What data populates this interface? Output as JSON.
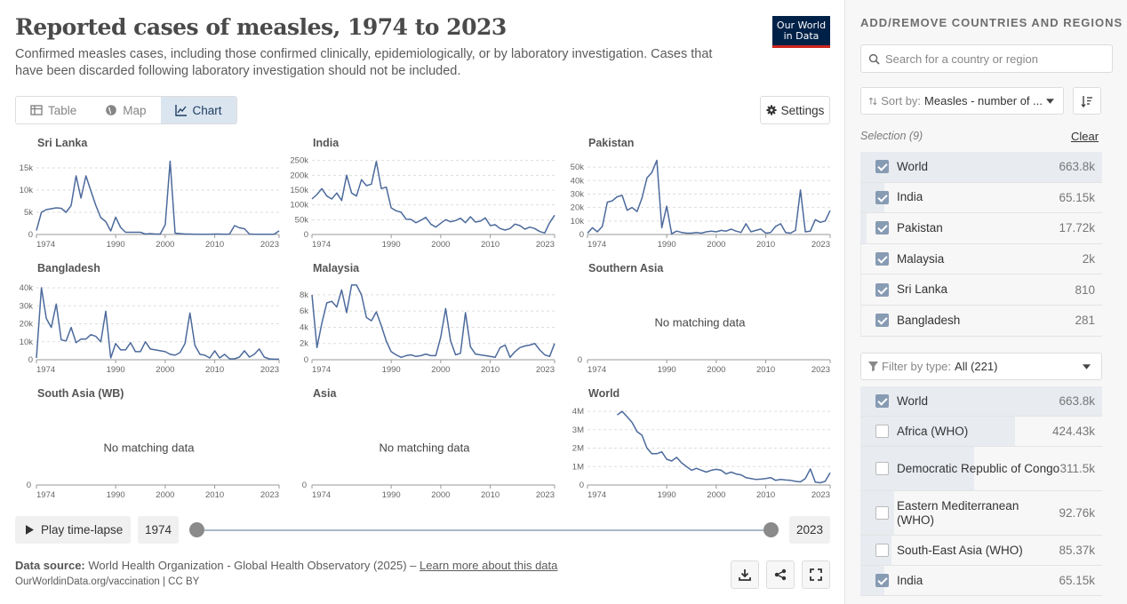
{
  "header": {
    "title": "Reported cases of measles, 1974 to 2023",
    "subtitle": "Confirmed measles cases, including those confirmed clinically, epidemiologically, or by laboratory investigation. Cases that have been discarded following laboratory investigation should not be included.",
    "logo_line1": "Our World",
    "logo_line2": "in Data"
  },
  "tabs": [
    {
      "label": "Table"
    },
    {
      "label": "Map"
    },
    {
      "label": "Chart"
    }
  ],
  "settings_label": "Settings",
  "controls": {
    "play_label": "Play time-lapse",
    "start_year": "1974",
    "end_year": "2023"
  },
  "footer": {
    "source_label": "Data source:",
    "source_text": "World Health Organization - Global Health Observatory (2025) –",
    "learn_more": "Learn more about this data",
    "url": "OurWorldinData.org/vaccination | CC BY"
  },
  "sidebar": {
    "heading": "ADD/REMOVE COUNTRIES AND REGIONS",
    "search_placeholder": "Search for a country or region",
    "sort_label": "Sort by:",
    "sort_value": "Measles - number of ...",
    "selection_label": "Selection (9)",
    "clear_label": "Clear",
    "selected": [
      {
        "name": "World",
        "value": "663.8k",
        "checked": true,
        "share": 1.0
      },
      {
        "name": "India",
        "value": "65.15k",
        "checked": true,
        "share": 0.098
      },
      {
        "name": "Pakistan",
        "value": "17.72k",
        "checked": true,
        "share": 0.027
      },
      {
        "name": "Malaysia",
        "value": "2k",
        "checked": true,
        "share": 0.003
      },
      {
        "name": "Sri Lanka",
        "value": "810",
        "checked": true,
        "share": 0.001
      },
      {
        "name": "Bangladesh",
        "value": "281",
        "checked": true,
        "share": 0.0004
      }
    ],
    "filter_label": "Filter by type:",
    "filter_value": "All (221)",
    "all_items": [
      {
        "name": "World",
        "value": "663.8k",
        "checked": true,
        "share": 1.0
      },
      {
        "name": "Africa (WHO)",
        "value": "424.43k",
        "checked": false,
        "share": 0.64
      },
      {
        "name": "Democratic Republic of Congo",
        "value": "311.5k",
        "checked": false,
        "share": 0.47
      },
      {
        "name": "Eastern Mediterranean (WHO)",
        "value": "92.76k",
        "checked": false,
        "share": 0.14
      },
      {
        "name": "South-East Asia (WHO)",
        "value": "85.37k",
        "checked": false,
        "share": 0.13
      },
      {
        "name": "India",
        "value": "65.15k",
        "checked": true,
        "share": 0.098
      }
    ]
  },
  "chart_data": {
    "type": "line",
    "x_ticks": [
      1974,
      1990,
      2000,
      2010,
      2023
    ],
    "no_data_text": "No matching data",
    "color": "#4c6a9c",
    "panels": [
      {
        "name": "Sri Lanka",
        "yticks": [
          0,
          5000,
          10000,
          15000
        ],
        "yticklabels": [
          "0",
          "5k",
          "10k",
          "15k"
        ],
        "ymax": 17000,
        "x": [
          1974,
          1975,
          1976,
          1977,
          1978,
          1979,
          1980,
          1981,
          1982,
          1983,
          1984,
          1985,
          1986,
          1987,
          1988,
          1989,
          1990,
          1991,
          1992,
          1993,
          1994,
          1995,
          1996,
          1997,
          1998,
          1999,
          2000,
          2001,
          2002,
          2003,
          2004,
          2005,
          2006,
          2007,
          2008,
          2009,
          2010,
          2011,
          2012,
          2013,
          2014,
          2015,
          2016,
          2017,
          2018,
          2019,
          2020,
          2021,
          2022,
          2023
        ],
        "values": [
          900,
          5000,
          5600,
          5800,
          6000,
          5900,
          5000,
          6500,
          13200,
          8200,
          13200,
          9800,
          6500,
          3800,
          2900,
          800,
          3900,
          1600,
          500,
          500,
          500,
          500,
          100,
          200,
          100,
          100,
          2200,
          16500,
          300,
          200,
          100,
          100,
          50,
          50,
          50,
          50,
          100,
          100,
          50,
          100,
          2000,
          1500,
          1300,
          100,
          50,
          50,
          50,
          50,
          50,
          810
        ]
      },
      {
        "name": "India",
        "yticks": [
          0,
          50000,
          100000,
          150000,
          200000,
          250000
        ],
        "yticklabels": [
          "0",
          "50k",
          "100k",
          "150k",
          "200k",
          "250k"
        ],
        "ymax": 255000,
        "x": [
          1974,
          1975,
          1976,
          1977,
          1978,
          1979,
          1980,
          1981,
          1982,
          1983,
          1984,
          1985,
          1986,
          1987,
          1988,
          1989,
          1990,
          1991,
          1992,
          1993,
          1994,
          1995,
          1996,
          1997,
          1998,
          1999,
          2000,
          2001,
          2002,
          2003,
          2004,
          2005,
          2006,
          2007,
          2008,
          2009,
          2010,
          2011,
          2012,
          2013,
          2014,
          2015,
          2016,
          2017,
          2018,
          2019,
          2020,
          2021,
          2022,
          2023
        ],
        "values": [
          120000,
          135000,
          155000,
          130000,
          120000,
          140000,
          115000,
          200000,
          140000,
          130000,
          185000,
          165000,
          170000,
          247000,
          155000,
          160000,
          90000,
          80000,
          75000,
          52000,
          51000,
          40000,
          48000,
          58000,
          35000,
          25000,
          38000,
          50000,
          43000,
          47000,
          55000,
          40000,
          60000,
          42000,
          45000,
          56000,
          30000,
          33000,
          20000,
          15000,
          20000,
          35000,
          30000,
          18000,
          25000,
          20000,
          10000,
          5000,
          40000,
          65150
        ]
      },
      {
        "name": "Pakistan",
        "yticks": [
          0,
          10000,
          20000,
          30000,
          40000,
          50000
        ],
        "yticklabels": [
          "0",
          "10k",
          "20k",
          "30k",
          "40k",
          "50k"
        ],
        "ymax": 56000,
        "x": [
          1974,
          1975,
          1976,
          1977,
          1978,
          1979,
          1980,
          1981,
          1982,
          1983,
          1984,
          1985,
          1986,
          1987,
          1988,
          1989,
          1990,
          1991,
          1992,
          1993,
          1994,
          1995,
          1996,
          1997,
          1998,
          1999,
          2000,
          2001,
          2002,
          2003,
          2004,
          2005,
          2006,
          2007,
          2008,
          2009,
          2010,
          2011,
          2012,
          2013,
          2014,
          2015,
          2016,
          2017,
          2018,
          2019,
          2020,
          2021,
          2022,
          2023
        ],
        "values": [
          1000,
          5000,
          2000,
          6000,
          24000,
          25000,
          28000,
          29000,
          18000,
          20000,
          17000,
          27000,
          42000,
          46000,
          55000,
          5000,
          21000,
          500,
          2500,
          1500,
          1000,
          1000,
          1500,
          1000,
          2000,
          2500,
          2000,
          3000,
          2500,
          4000,
          2500,
          1500,
          8000,
          2000,
          3000,
          4000,
          1000,
          1500,
          6000,
          8000,
          1500,
          1000,
          3000,
          33000,
          2000,
          2500,
          11000,
          9000,
          10000,
          17720
        ]
      },
      {
        "name": "Bangladesh",
        "yticks": [
          0,
          10000,
          20000,
          30000,
          40000
        ],
        "yticklabels": [
          "0",
          "10k",
          "20k",
          "30k",
          "40k"
        ],
        "ymax": 42000,
        "x": [
          1974,
          1975,
          1976,
          1977,
          1978,
          1979,
          1980,
          1981,
          1982,
          1983,
          1984,
          1985,
          1986,
          1987,
          1988,
          1989,
          1990,
          1991,
          1992,
          1993,
          1994,
          1995,
          1996,
          1997,
          1998,
          1999,
          2000,
          2001,
          2002,
          2003,
          2004,
          2005,
          2006,
          2007,
          2008,
          2009,
          2010,
          2011,
          2012,
          2013,
          2014,
          2015,
          2016,
          2017,
          2018,
          2019,
          2020,
          2021,
          2022,
          2023
        ],
        "values": [
          1000,
          40000,
          23000,
          18000,
          31000,
          11000,
          10500,
          18000,
          9500,
          11500,
          11500,
          14000,
          13000,
          10000,
          27000,
          1000,
          9000,
          5500,
          5500,
          9500,
          4500,
          4500,
          10000,
          6000,
          5500,
          5000,
          4500,
          3000,
          2500,
          4000,
          9000,
          26000,
          8000,
          3000,
          2500,
          1000,
          5000,
          1000,
          3000,
          500,
          500,
          1500,
          5000,
          1500,
          3000,
          6000,
          1500,
          500,
          300,
          281
        ]
      },
      {
        "name": "Malaysia",
        "yticks": [
          0,
          2000,
          4000,
          6000,
          8000
        ],
        "yticklabels": [
          "0",
          "2k",
          "4k",
          "6k",
          "8k"
        ],
        "ymax": 9300,
        "x": [
          1974,
          1975,
          1976,
          1977,
          1978,
          1979,
          1980,
          1981,
          1982,
          1983,
          1984,
          1985,
          1986,
          1987,
          1988,
          1989,
          1990,
          1991,
          1992,
          1993,
          1994,
          1995,
          1996,
          1997,
          1998,
          1999,
          2000,
          2001,
          2002,
          2003,
          2004,
          2005,
          2006,
          2007,
          2008,
          2009,
          2010,
          2011,
          2012,
          2013,
          2014,
          2015,
          2016,
          2017,
          2018,
          2019,
          2020,
          2021,
          2022,
          2023
        ],
        "values": [
          8000,
          1500,
          4500,
          7000,
          7200,
          6500,
          8600,
          5800,
          9200,
          9200,
          8000,
          5200,
          4800,
          5900,
          4200,
          2300,
          1000,
          600,
          300,
          500,
          600,
          400,
          500,
          700,
          500,
          500,
          2800,
          6300,
          2300,
          600,
          800,
          5800,
          1600,
          700,
          600,
          500,
          400,
          300,
          1500,
          1800,
          300,
          1000,
          1500,
          1700,
          1800,
          2000,
          1200,
          600,
          400,
          2000
        ]
      },
      {
        "name": "Southern Asia",
        "empty": true
      },
      {
        "name": "South Asia (WB)",
        "empty": true
      },
      {
        "name": "Asia",
        "empty": true
      },
      {
        "name": "World",
        "yticks": [
          0,
          1000000,
          2000000,
          3000000,
          4000000
        ],
        "yticklabels": [
          "0",
          "1M",
          "2M",
          "3M",
          "4M"
        ],
        "ymax": 4100000,
        "x": [
          1980,
          1981,
          1982,
          1983,
          1984,
          1985,
          1986,
          1987,
          1988,
          1989,
          1990,
          1991,
          1992,
          1993,
          1994,
          1995,
          1996,
          1997,
          1998,
          1999,
          2000,
          2001,
          2002,
          2003,
          2004,
          2005,
          2006,
          2007,
          2008,
          2009,
          2010,
          2011,
          2012,
          2013,
          2014,
          2015,
          2016,
          2017,
          2018,
          2019,
          2020,
          2021,
          2022,
          2023
        ],
        "values": [
          3800000,
          4000000,
          3700000,
          3400000,
          2900000,
          2700000,
          2000000,
          1700000,
          1700000,
          1800000,
          1400000,
          1300000,
          1500000,
          1200000,
          1000000,
          800000,
          900000,
          800000,
          700000,
          800000,
          850000,
          800000,
          600000,
          700000,
          600000,
          550000,
          400000,
          350000,
          300000,
          320000,
          350000,
          400000,
          250000,
          300000,
          270000,
          250000,
          200000,
          170000,
          350000,
          870000,
          160000,
          120000,
          200000,
          663800
        ]
      }
    ]
  }
}
